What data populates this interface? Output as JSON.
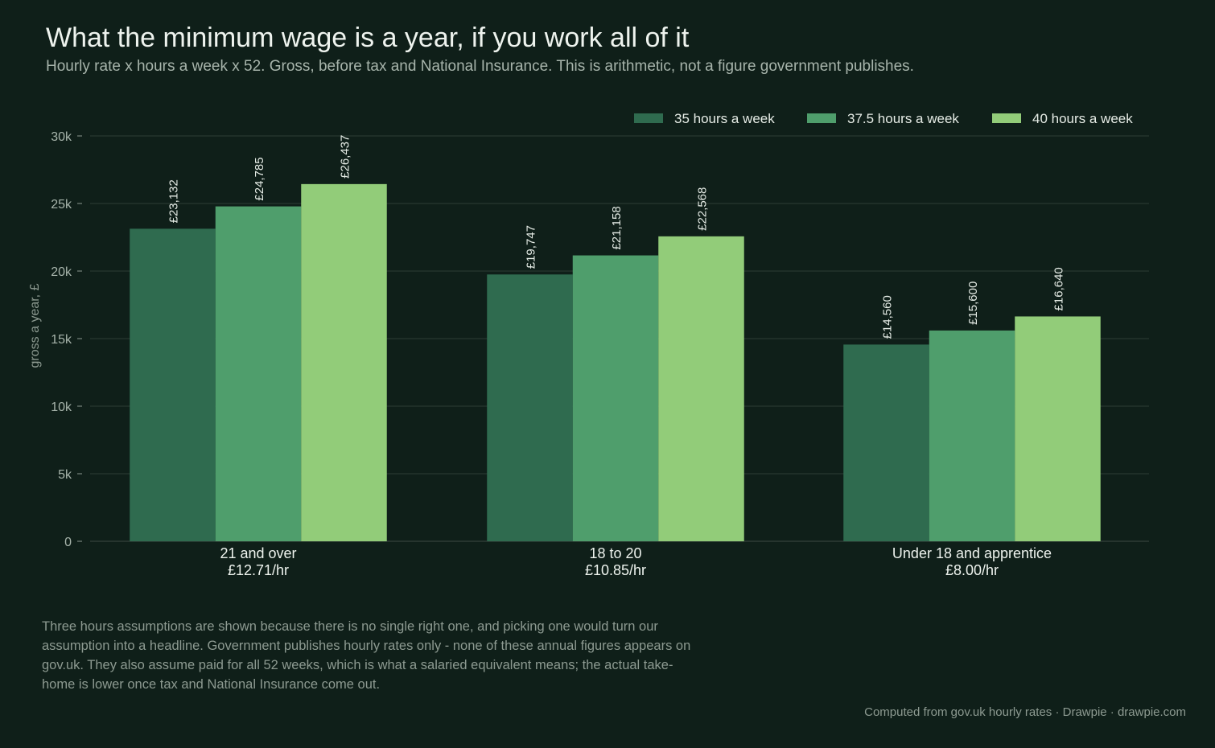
{
  "header": {
    "title": "What the minimum wage is a year, if you work all of it",
    "subtitle": "Hourly rate x hours a week x 52. Gross, before tax and National Insurance. This is arithmetic, not a figure government publishes."
  },
  "chart_data": {
    "type": "bar",
    "categories": [
      "21 and over",
      "18 to 20",
      "Under 18 and apprentice"
    ],
    "category_rates": [
      "£12.71/hr",
      "£10.85/hr",
      "£8.00/hr"
    ],
    "series": [
      {
        "name": "35 hours a week",
        "values": [
          23132,
          19747,
          14560
        ],
        "labels": [
          "£23,132",
          "£19,747",
          "£14,560"
        ],
        "color": "#2f6b4f"
      },
      {
        "name": "37.5 hours a week",
        "values": [
          24785,
          21158,
          15600
        ],
        "labels": [
          "£24,785",
          "£21,158",
          "£15,600"
        ],
        "color": "#4f9e6c"
      },
      {
        "name": "40 hours a week",
        "values": [
          26437,
          22568,
          16640
        ],
        "labels": [
          "£26,437",
          "£22,568",
          "£16,640"
        ],
        "color": "#92cc79"
      }
    ],
    "ylabel": "gross a year, £",
    "ylim": [
      0,
      30000
    ],
    "yticks": [
      0,
      5000,
      10000,
      15000,
      20000,
      25000,
      30000
    ],
    "ytick_labels": [
      "0",
      "5k",
      "10k",
      "15k",
      "20k",
      "25k",
      "30k"
    ],
    "grid": true,
    "legend_position": "top-right"
  },
  "note": "Three hours assumptions are shown because there is no single right one, and picking one would turn our assumption into a headline. Government publishes hourly rates only - none of these annual figures appears on gov.uk. They also assume paid for all 52 weeks, which is what a salaried equivalent means; the actual take-home is lower once tax and National Insurance come out.",
  "footer": "Computed from gov.uk hourly rates  ·  Drawpie · drawpie.com"
}
